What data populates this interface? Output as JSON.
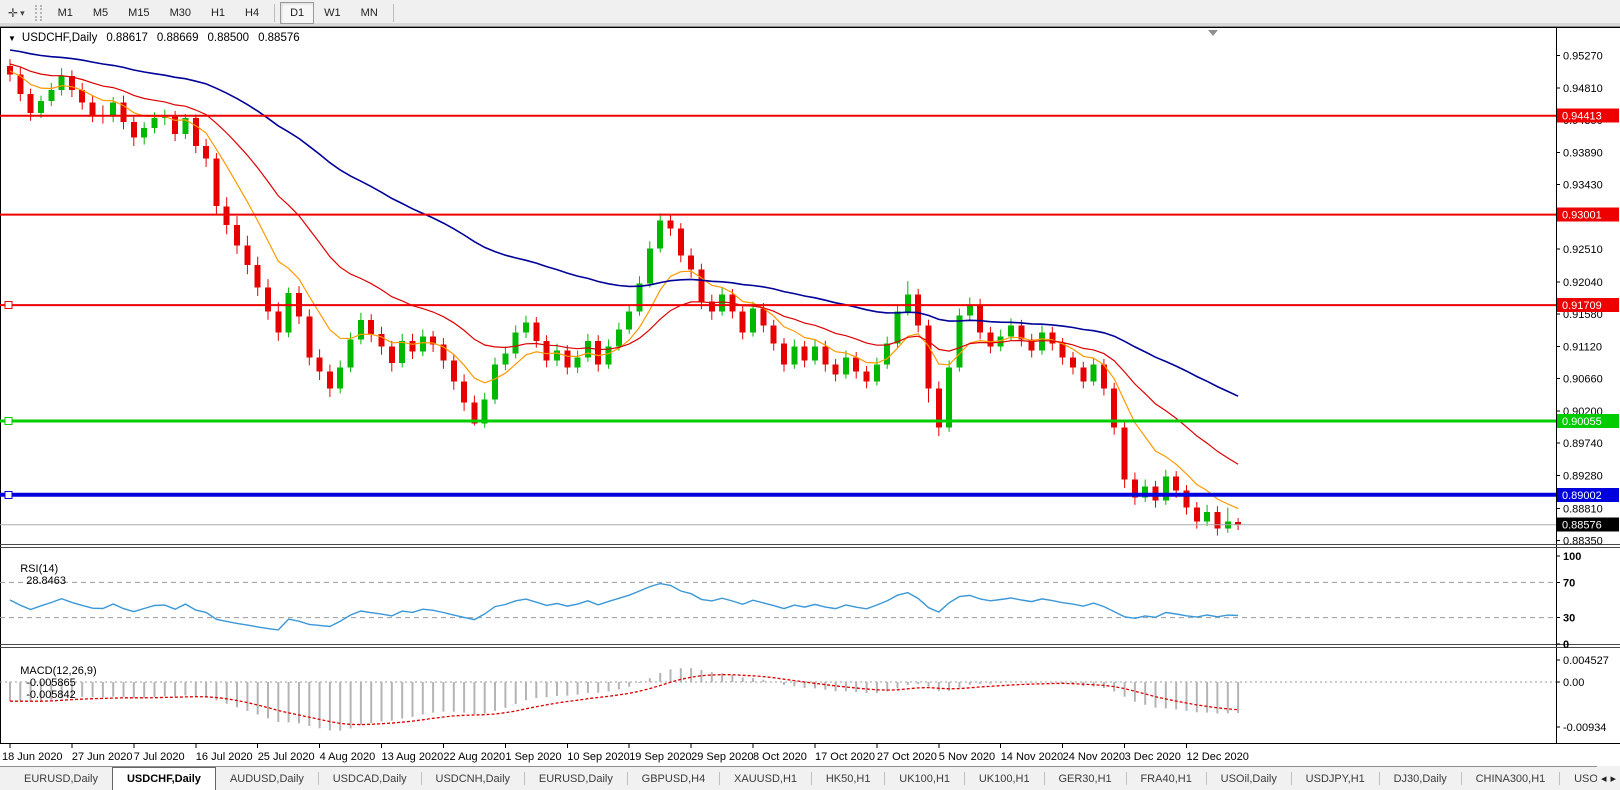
{
  "toolbar": {
    "cursor_icon_glyph": "✛",
    "cursor_caret_glyph": "▾",
    "timeframes_left": [
      "M1",
      "M5",
      "M15",
      "M30",
      "H1",
      "H4"
    ],
    "timeframes_right": [
      "D1",
      "W1",
      "MN"
    ],
    "active_timeframe": "D1"
  },
  "chart": {
    "title_arrow_glyph": "▼",
    "symbol_title": "USDCHF,Daily",
    "ohlc": {
      "open": "0.88617",
      "high": "0.88669",
      "low": "0.88500",
      "close": "0.88576"
    }
  },
  "chart_data": {
    "type": "candlestick",
    "symbol": "USDCHF",
    "timeframe": "Daily",
    "price_axis": {
      "top_price": 0.9555,
      "bottom_price": 0.883,
      "ticks": [
        "0.95270",
        "0.94810",
        "0.94350",
        "0.93890",
        "0.93430",
        "0.92970",
        "0.92510",
        "0.92040",
        "0.91580",
        "0.91120",
        "0.90660",
        "0.90200",
        "0.89740",
        "0.89280",
        "0.88810",
        "0.88350"
      ]
    },
    "x_labels": [
      "18 Jun 2020",
      "27 Jun 2020",
      "7 Jul 2020",
      "16 Jul 2020",
      "25 Jul 2020",
      "4 Aug 2020",
      "13 Aug 2020",
      "22 Aug 2020",
      "1 Sep 2020",
      "10 Sep 2020",
      "19 Sep 2020",
      "29 Sep 2020",
      "8 Oct 2020",
      "17 Oct 2020",
      "27 Oct 2020",
      "5 Nov 2020",
      "14 Nov 2020",
      "24 Nov 2020",
      "3 Dec 2020",
      "12 Dec 2020"
    ],
    "candles": [
      [
        0.9512,
        0.9522,
        0.949,
        0.95
      ],
      [
        0.95,
        0.951,
        0.9462,
        0.9472
      ],
      [
        0.9472,
        0.948,
        0.9434,
        0.9445
      ],
      [
        0.9445,
        0.947,
        0.9438,
        0.9462
      ],
      [
        0.9462,
        0.9488,
        0.9455,
        0.9478
      ],
      [
        0.9478,
        0.9509,
        0.947,
        0.9498
      ],
      [
        0.9498,
        0.9506,
        0.9468,
        0.9478
      ],
      [
        0.9478,
        0.9488,
        0.945,
        0.946
      ],
      [
        0.946,
        0.947,
        0.9432,
        0.9442
      ],
      [
        0.9442,
        0.9456,
        0.943,
        0.944
      ],
      [
        0.944,
        0.9468,
        0.9432,
        0.946
      ],
      [
        0.946,
        0.947,
        0.9422,
        0.9432
      ],
      [
        0.9432,
        0.944,
        0.9398,
        0.941
      ],
      [
        0.941,
        0.9432,
        0.94,
        0.9424
      ],
      [
        0.9424,
        0.9446,
        0.9416,
        0.9438
      ],
      [
        0.9438,
        0.945,
        0.9428,
        0.944
      ],
      [
        0.944,
        0.9448,
        0.9405,
        0.9415
      ],
      [
        0.9415,
        0.9444,
        0.9408,
        0.9438
      ],
      [
        0.9438,
        0.9443,
        0.9388,
        0.9398
      ],
      [
        0.9398,
        0.9408,
        0.9368,
        0.938
      ],
      [
        0.938,
        0.9388,
        0.93,
        0.9312
      ],
      [
        0.9312,
        0.9325,
        0.9272,
        0.9285
      ],
      [
        0.9285,
        0.9298,
        0.9244,
        0.9256
      ],
      [
        0.9256,
        0.927,
        0.9215,
        0.9228
      ],
      [
        0.9228,
        0.924,
        0.9184,
        0.9196
      ],
      [
        0.9196,
        0.9208,
        0.915,
        0.9162
      ],
      [
        0.9162,
        0.9175,
        0.912,
        0.9132
      ],
      [
        0.9132,
        0.9196,
        0.9125,
        0.9188
      ],
      [
        0.9188,
        0.9198,
        0.9144,
        0.9155
      ],
      [
        0.9155,
        0.9165,
        0.9085,
        0.9096
      ],
      [
        0.9096,
        0.9108,
        0.9064,
        0.9076
      ],
      [
        0.9076,
        0.9086,
        0.904,
        0.9052
      ],
      [
        0.9052,
        0.9092,
        0.9045,
        0.9082
      ],
      [
        0.9082,
        0.9132,
        0.9075,
        0.9122
      ],
      [
        0.9122,
        0.916,
        0.9115,
        0.915
      ],
      [
        0.915,
        0.9158,
        0.9118,
        0.913
      ],
      [
        0.913,
        0.914,
        0.91,
        0.9112
      ],
      [
        0.9112,
        0.912,
        0.9076,
        0.9088
      ],
      [
        0.9088,
        0.913,
        0.9082,
        0.912
      ],
      [
        0.912,
        0.913,
        0.9094,
        0.9105
      ],
      [
        0.9105,
        0.9136,
        0.9098,
        0.9126
      ],
      [
        0.9126,
        0.9134,
        0.9104,
        0.9115
      ],
      [
        0.9115,
        0.9124,
        0.908,
        0.9092
      ],
      [
        0.9092,
        0.91,
        0.905,
        0.9062
      ],
      [
        0.9062,
        0.9072,
        0.902,
        0.9032
      ],
      [
        0.9032,
        0.9042,
        0.8999,
        0.9002
      ],
      [
        0.9002,
        0.9046,
        0.8996,
        0.9036
      ],
      [
        0.9036,
        0.9096,
        0.903,
        0.9086
      ],
      [
        0.9086,
        0.9112,
        0.9078,
        0.9102
      ],
      [
        0.9102,
        0.9142,
        0.9095,
        0.9132
      ],
      [
        0.9132,
        0.9156,
        0.9124,
        0.9146
      ],
      [
        0.9146,
        0.9154,
        0.911,
        0.912
      ],
      [
        0.912,
        0.9128,
        0.9082,
        0.9092
      ],
      [
        0.9092,
        0.9116,
        0.9084,
        0.9106
      ],
      [
        0.9106,
        0.9114,
        0.9072,
        0.9082
      ],
      [
        0.9082,
        0.9106,
        0.9074,
        0.9096
      ],
      [
        0.9096,
        0.913,
        0.909,
        0.912
      ],
      [
        0.912,
        0.9128,
        0.9076,
        0.9086
      ],
      [
        0.9086,
        0.9122,
        0.908,
        0.9112
      ],
      [
        0.9112,
        0.9146,
        0.9106,
        0.9136
      ],
      [
        0.9136,
        0.9172,
        0.913,
        0.9162
      ],
      [
        0.9162,
        0.9212,
        0.9156,
        0.9202
      ],
      [
        0.9202,
        0.9262,
        0.9196,
        0.9252
      ],
      [
        0.9252,
        0.9302,
        0.9246,
        0.9292
      ],
      [
        0.9292,
        0.93,
        0.927,
        0.928
      ],
      [
        0.928,
        0.9288,
        0.9232,
        0.9242
      ],
      [
        0.9242,
        0.9252,
        0.921,
        0.9222
      ],
      [
        0.9222,
        0.923,
        0.9165,
        0.9176
      ],
      [
        0.9176,
        0.9186,
        0.915,
        0.9162
      ],
      [
        0.9162,
        0.9196,
        0.9156,
        0.9186
      ],
      [
        0.9186,
        0.9194,
        0.9152,
        0.9162
      ],
      [
        0.9162,
        0.917,
        0.9122,
        0.9132
      ],
      [
        0.9132,
        0.9176,
        0.9126,
        0.9166
      ],
      [
        0.9166,
        0.9174,
        0.9132,
        0.9142
      ],
      [
        0.9142,
        0.915,
        0.9106,
        0.9116
      ],
      [
        0.9116,
        0.9124,
        0.9076,
        0.9086
      ],
      [
        0.9086,
        0.9122,
        0.908,
        0.9112
      ],
      [
        0.9112,
        0.912,
        0.9082,
        0.9092
      ],
      [
        0.9092,
        0.9122,
        0.9086,
        0.9112
      ],
      [
        0.9112,
        0.912,
        0.9076,
        0.9086
      ],
      [
        0.9086,
        0.9094,
        0.9062,
        0.9072
      ],
      [
        0.9072,
        0.9106,
        0.9066,
        0.9096
      ],
      [
        0.9096,
        0.9104,
        0.9066,
        0.9076
      ],
      [
        0.9076,
        0.9084,
        0.9052,
        0.9062
      ],
      [
        0.9062,
        0.9096,
        0.9056,
        0.9086
      ],
      [
        0.9086,
        0.9126,
        0.908,
        0.9116
      ],
      [
        0.9116,
        0.9172,
        0.911,
        0.9162
      ],
      [
        0.9162,
        0.9205,
        0.9156,
        0.9186
      ],
      [
        0.9186,
        0.9194,
        0.9132,
        0.9142
      ],
      [
        0.9142,
        0.915,
        0.9032,
        0.9052
      ],
      [
        0.9052,
        0.9062,
        0.8984,
        0.8996
      ],
      [
        0.8996,
        0.9092,
        0.899,
        0.9082
      ],
      [
        0.9082,
        0.9166,
        0.9076,
        0.9156
      ],
      [
        0.9156,
        0.9182,
        0.9148,
        0.9172
      ],
      [
        0.9172,
        0.918,
        0.9122,
        0.9132
      ],
      [
        0.9132,
        0.914,
        0.9102,
        0.9112
      ],
      [
        0.9112,
        0.9136,
        0.9105,
        0.9126
      ],
      [
        0.9126,
        0.9152,
        0.912,
        0.9142
      ],
      [
        0.9142,
        0.915,
        0.9112,
        0.9122
      ],
      [
        0.9122,
        0.913,
        0.9096,
        0.9106
      ],
      [
        0.9106,
        0.9142,
        0.91,
        0.9132
      ],
      [
        0.9132,
        0.914,
        0.9106,
        0.9116
      ],
      [
        0.9116,
        0.9124,
        0.9086,
        0.9096
      ],
      [
        0.9096,
        0.9104,
        0.9072,
        0.9082
      ],
      [
        0.9082,
        0.909,
        0.9052,
        0.9062
      ],
      [
        0.9062,
        0.9096,
        0.9056,
        0.9086
      ],
      [
        0.9086,
        0.9094,
        0.9042,
        0.9052
      ],
      [
        0.9052,
        0.906,
        0.8986,
        0.8996
      ],
      [
        0.8996,
        0.9004,
        0.891,
        0.8922
      ],
      [
        0.8922,
        0.8932,
        0.8886,
        0.8896
      ],
      [
        0.8896,
        0.8922,
        0.889,
        0.8912
      ],
      [
        0.8912,
        0.892,
        0.8882,
        0.8892
      ],
      [
        0.8892,
        0.8936,
        0.8886,
        0.8926
      ],
      [
        0.8926,
        0.8934,
        0.8896,
        0.8906
      ],
      [
        0.8906,
        0.8914,
        0.8872,
        0.8882
      ],
      [
        0.8882,
        0.889,
        0.8852,
        0.8862
      ],
      [
        0.8862,
        0.8886,
        0.8856,
        0.8876
      ],
      [
        0.8876,
        0.8884,
        0.8842,
        0.8852
      ],
      [
        0.8852,
        0.8882,
        0.8846,
        0.8862
      ],
      [
        0.88617,
        0.88669,
        0.885,
        0.88576
      ]
    ],
    "up_color": "#00b800",
    "down_color": "#e60000",
    "moving_averages": [
      {
        "name": "fast",
        "period": 8,
        "seed": 0.9505,
        "color": "#ff9900",
        "width": 1.2
      },
      {
        "name": "medium",
        "period": 20,
        "seed": 0.9515,
        "color": "#dd0000",
        "width": 1.2
      },
      {
        "name": "slow",
        "period": 55,
        "seed": 0.9535,
        "color": "#000099",
        "width": 1.6
      }
    ],
    "price_lines": [
      {
        "label": "0.94413",
        "price": 0.94413,
        "color": "#ee0000",
        "width": 2,
        "handle": false
      },
      {
        "label": "0.93001",
        "price": 0.93001,
        "color": "#ee0000",
        "width": 2,
        "handle": false
      },
      {
        "label": "0.91709",
        "price": 0.91709,
        "color": "#ee0000",
        "width": 2,
        "handle": true
      },
      {
        "label": "0.90055",
        "price": 0.90055,
        "color": "#00cc00",
        "width": 3,
        "handle": true
      },
      {
        "label": "0.89002",
        "price": 0.89002,
        "color": "#0000dd",
        "width": 4,
        "handle": true
      }
    ],
    "current_price": {
      "label": "0.88576",
      "value": 0.88576,
      "line_color": "#aaaaaa",
      "box_color": "#000000"
    },
    "indicators": {
      "rsi": {
        "name": "RSI(14)",
        "value": "28.8463",
        "levels": [
          70,
          30
        ],
        "scale": [
          "100",
          "70",
          "30",
          "0"
        ],
        "line_color": "#3a98d8"
      },
      "macd": {
        "name": "MACD(12,26,9)",
        "value_macd": "-0.005865",
        "value_signal": "-0.005842",
        "scale": [
          "0.004527",
          "0.00",
          "-0.00934"
        ],
        "histogram_color": "#b4b4b4",
        "signal_color": "#dd0000"
      }
    }
  },
  "tabs": {
    "items": [
      "EURUSD,Daily",
      "USDCHF,Daily",
      "AUDUSD,Daily",
      "USDCAD,Daily",
      "USDCNH,Daily",
      "EURUSD,Daily",
      "GBPUSD,H4",
      "XAUUSD,H1",
      "HK50,H1",
      "UK100,H1",
      "UK100,H1",
      "GER30,H1",
      "FRA40,H1",
      "USOil,Daily",
      "USDJPY,H1",
      "DJ30,Daily",
      "CHINA300,H1",
      "USOil,"
    ],
    "active_index": 1,
    "scroll_left_glyph": "◂",
    "scroll_right_glyph": "▸"
  }
}
